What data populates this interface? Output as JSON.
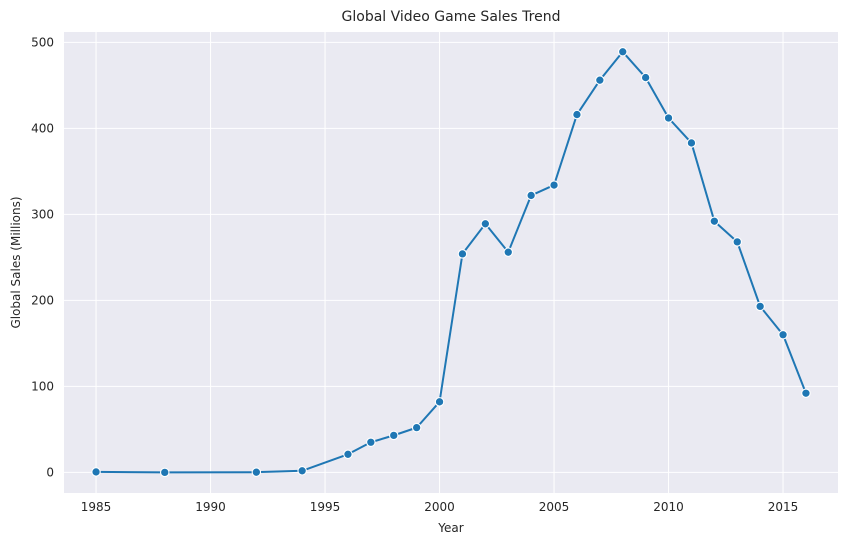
{
  "colors": {
    "plot_bg": "#eaeaf2",
    "grid": "#ffffff",
    "series": "#1f77b4",
    "text": "#262626"
  },
  "chart_data": {
    "type": "line",
    "title": "Global Video Game Sales Trend",
    "xlabel": "Year",
    "ylabel": "Global Sales (Millions)",
    "xlim": [
      1983.6,
      2017.4
    ],
    "ylim": [
      -24,
      512
    ],
    "x_ticks": [
      1985,
      1990,
      1995,
      2000,
      2005,
      2010,
      2015
    ],
    "y_ticks": [
      0,
      100,
      200,
      300,
      400,
      500
    ],
    "grid": true,
    "marker": "circle",
    "series": [
      {
        "x": [
          1985,
          1988,
          1992,
          1994,
          1996,
          1997,
          1998,
          1999,
          2000,
          2001,
          2002,
          2003,
          2004,
          2005,
          2006,
          2007,
          2008,
          2009,
          2010,
          2011,
          2012,
          2013,
          2014,
          2015,
          2016
        ],
        "y": [
          0.5,
          0.0,
          0.2,
          1.8,
          21,
          35,
          43,
          52,
          82,
          254,
          289,
          256,
          322,
          334,
          416,
          456,
          489,
          459,
          412,
          383,
          292,
          268,
          193,
          160,
          92
        ]
      }
    ]
  }
}
